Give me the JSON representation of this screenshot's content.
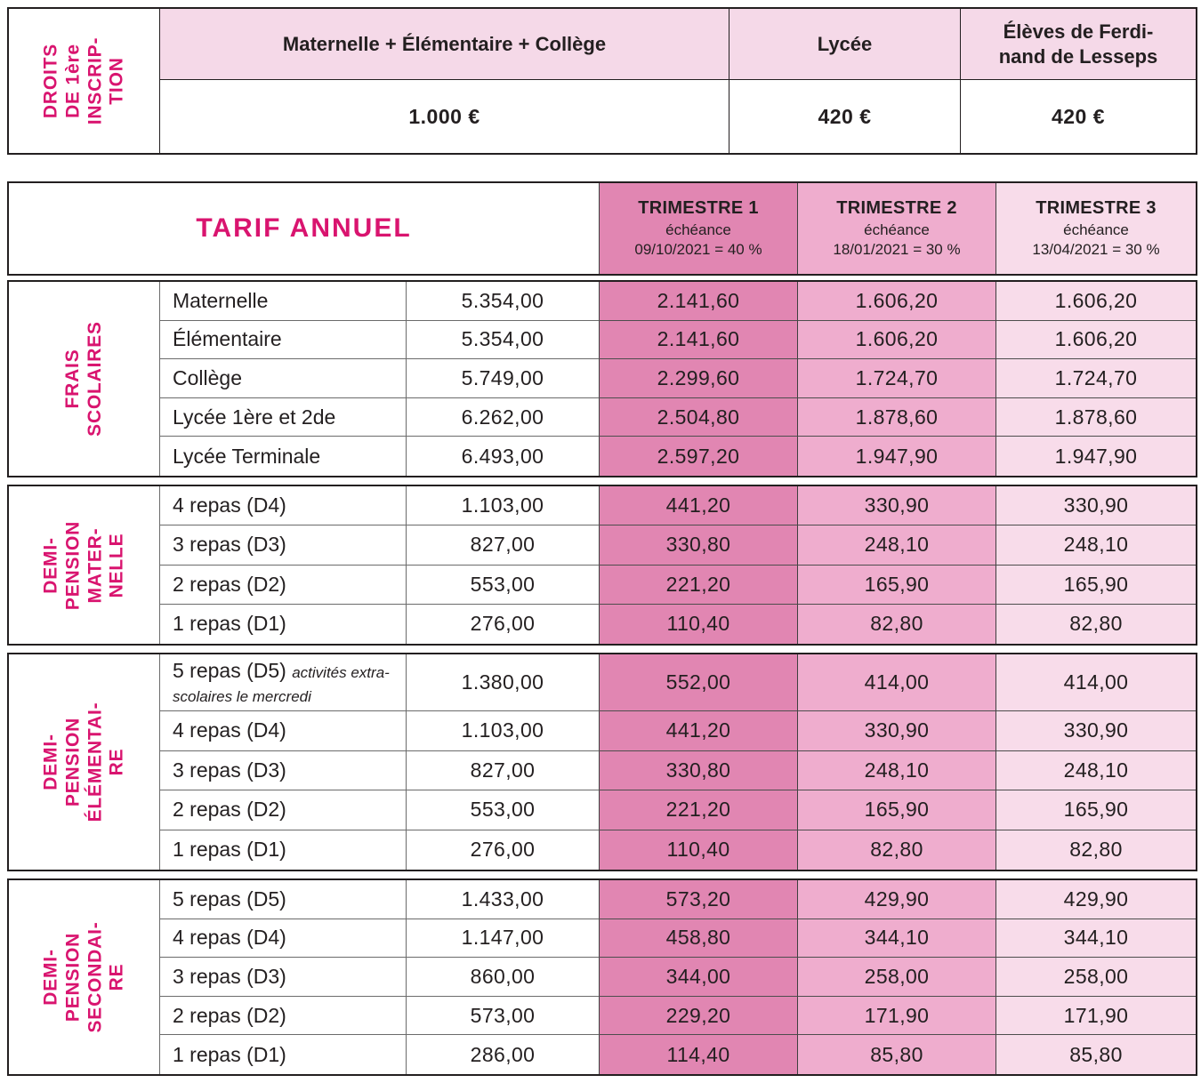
{
  "colors": {
    "accent_magenta": "#d9146f",
    "top_header_bg": "#f5d9e8",
    "trimestre1_bg": "#e186b2",
    "trimestre2_bg": "#efadce",
    "trimestre3_bg": "#f8dcea",
    "border_dark": "#231f20",
    "text": "#231f20"
  },
  "top_table": {
    "row_header": "DROITS\nDE 1ère\nINSCRIP-\nTION",
    "columns": [
      {
        "label": "Maternelle + Élémentaire + Collège",
        "value": "1.000 €"
      },
      {
        "label": "Lycée",
        "value": "420 €"
      },
      {
        "label": "Élèves de Ferdi-\nnand de Lesseps",
        "value": "420 €"
      }
    ]
  },
  "main_table": {
    "title": "TARIF ANNUEL",
    "trimestres": [
      {
        "name": "TRIMESTRE 1",
        "echeance_label": "échéance",
        "echeance": "09/10/2021 = 40 %"
      },
      {
        "name": "TRIMESTRE 2",
        "echeance_label": "échéance",
        "echeance": "18/01/2021 = 30 %"
      },
      {
        "name": "TRIMESTRE 3",
        "echeance_label": "échéance",
        "echeance": "13/04/2021 = 30 %"
      }
    ],
    "sections": [
      {
        "label": "FRAIS\nSCOLAIRES",
        "rows": [
          {
            "label": "Maternelle",
            "annual": "5.354,00",
            "t1": "2.141,60",
            "t2": "1.606,20",
            "t3": "1.606,20"
          },
          {
            "label": "Élémentaire",
            "annual": "5.354,00",
            "t1": "2.141,60",
            "t2": "1.606,20",
            "t3": "1.606,20"
          },
          {
            "label": "Collège",
            "annual": "5.749,00",
            "t1": "2.299,60",
            "t2": "1.724,70",
            "t3": "1.724,70"
          },
          {
            "label": "Lycée 1ère et 2de",
            "annual": "6.262,00",
            "t1": "2.504,80",
            "t2": "1.878,60",
            "t3": "1.878,60"
          },
          {
            "label": "Lycée Terminale",
            "annual": "6.493,00",
            "t1": "2.597,20",
            "t2": "1.947,90",
            "t3": "1.947,90"
          }
        ]
      },
      {
        "label": "DEMI-\nPENSION\nMATER-\nNELLE",
        "rows": [
          {
            "label": "4 repas (D4)",
            "annual": "1.103,00",
            "t1": "441,20",
            "t2": "330,90",
            "t3": "330,90"
          },
          {
            "label": "3 repas (D3)",
            "annual": "827,00",
            "t1": "330,80",
            "t2": "248,10",
            "t3": "248,10"
          },
          {
            "label": "2 repas (D2)",
            "annual": "553,00",
            "t1": "221,20",
            "t2": "165,90",
            "t3": "165,90"
          },
          {
            "label": "1 repas (D1)",
            "annual": "276,00",
            "t1": "110,40",
            "t2": "82,80",
            "t3": "82,80"
          }
        ]
      },
      {
        "label": "DEMI-\nPENSION\nÉLÉMENTAI-\nRE",
        "rows": [
          {
            "label": "5 repas (D5)",
            "note": "activités extra-scolaires le mercredi",
            "annual": "1.380,00",
            "t1": "552,00",
            "t2": "414,00",
            "t3": "414,00"
          },
          {
            "label": "4 repas (D4)",
            "annual": "1.103,00",
            "t1": "441,20",
            "t2": "330,90",
            "t3": "330,90"
          },
          {
            "label": "3 repas (D3)",
            "annual": "827,00",
            "t1": "330,80",
            "t2": "248,10",
            "t3": "248,10"
          },
          {
            "label": "2 repas (D2)",
            "annual": "553,00",
            "t1": "221,20",
            "t2": "165,90",
            "t3": "165,90"
          },
          {
            "label": "1 repas (D1)",
            "annual": "276,00",
            "t1": "110,40",
            "t2": "82,80",
            "t3": "82,80"
          }
        ]
      },
      {
        "label": "DEMI-\nPENSION\nSECONDAI-\nRE",
        "rows": [
          {
            "label": "5 repas (D5)",
            "annual": "1.433,00",
            "t1": "573,20",
            "t2": "429,90",
            "t3": "429,90"
          },
          {
            "label": "4 repas (D4)",
            "annual": "1.147,00",
            "t1": "458,80",
            "t2": "344,10",
            "t3": "344,10"
          },
          {
            "label": "3 repas (D3)",
            "annual": "860,00",
            "t1": "344,00",
            "t2": "258,00",
            "t3": "258,00"
          },
          {
            "label": "2 repas (D2)",
            "annual": "573,00",
            "t1": "229,20",
            "t2": "171,90",
            "t3": "171,90"
          },
          {
            "label": "1 repas (D1)",
            "annual": "286,00",
            "t1": "114,40",
            "t2": "85,80",
            "t3": "85,80"
          }
        ]
      }
    ]
  }
}
